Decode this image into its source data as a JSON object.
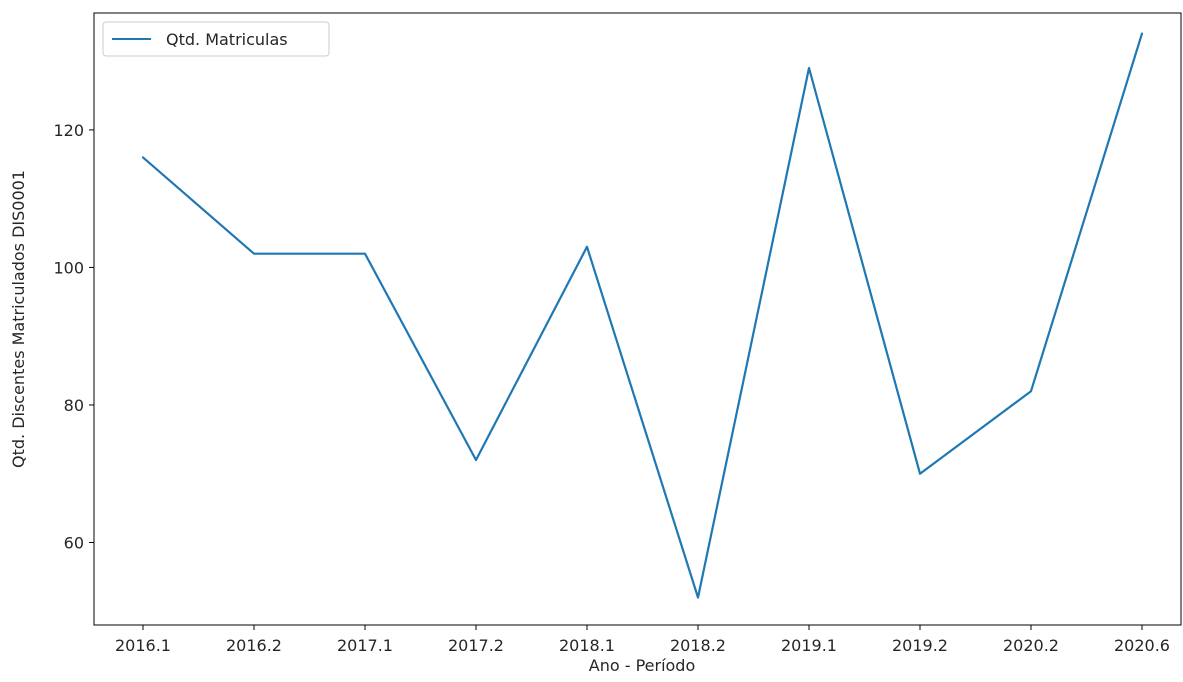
{
  "chart_data": {
    "type": "line",
    "categories": [
      "2016.1",
      "2016.2",
      "2017.1",
      "2017.2",
      "2018.1",
      "2018.2",
      "2019.1",
      "2019.2",
      "2020.2",
      "2020.6"
    ],
    "series": [
      {
        "name": "Qtd. Matriculas",
        "values": [
          116,
          102,
          102,
          72,
          103,
          52,
          129,
          70,
          82,
          134
        ],
        "color": "#1f77b4"
      }
    ],
    "xlabel": "Ano - Período",
    "ylabel": "Qtd. Discentes Matriculados DIS0001",
    "ylim": [
      48,
      137
    ],
    "yticks": [
      60,
      80,
      100,
      120
    ],
    "grid": false,
    "legend_position": "upper-left"
  }
}
